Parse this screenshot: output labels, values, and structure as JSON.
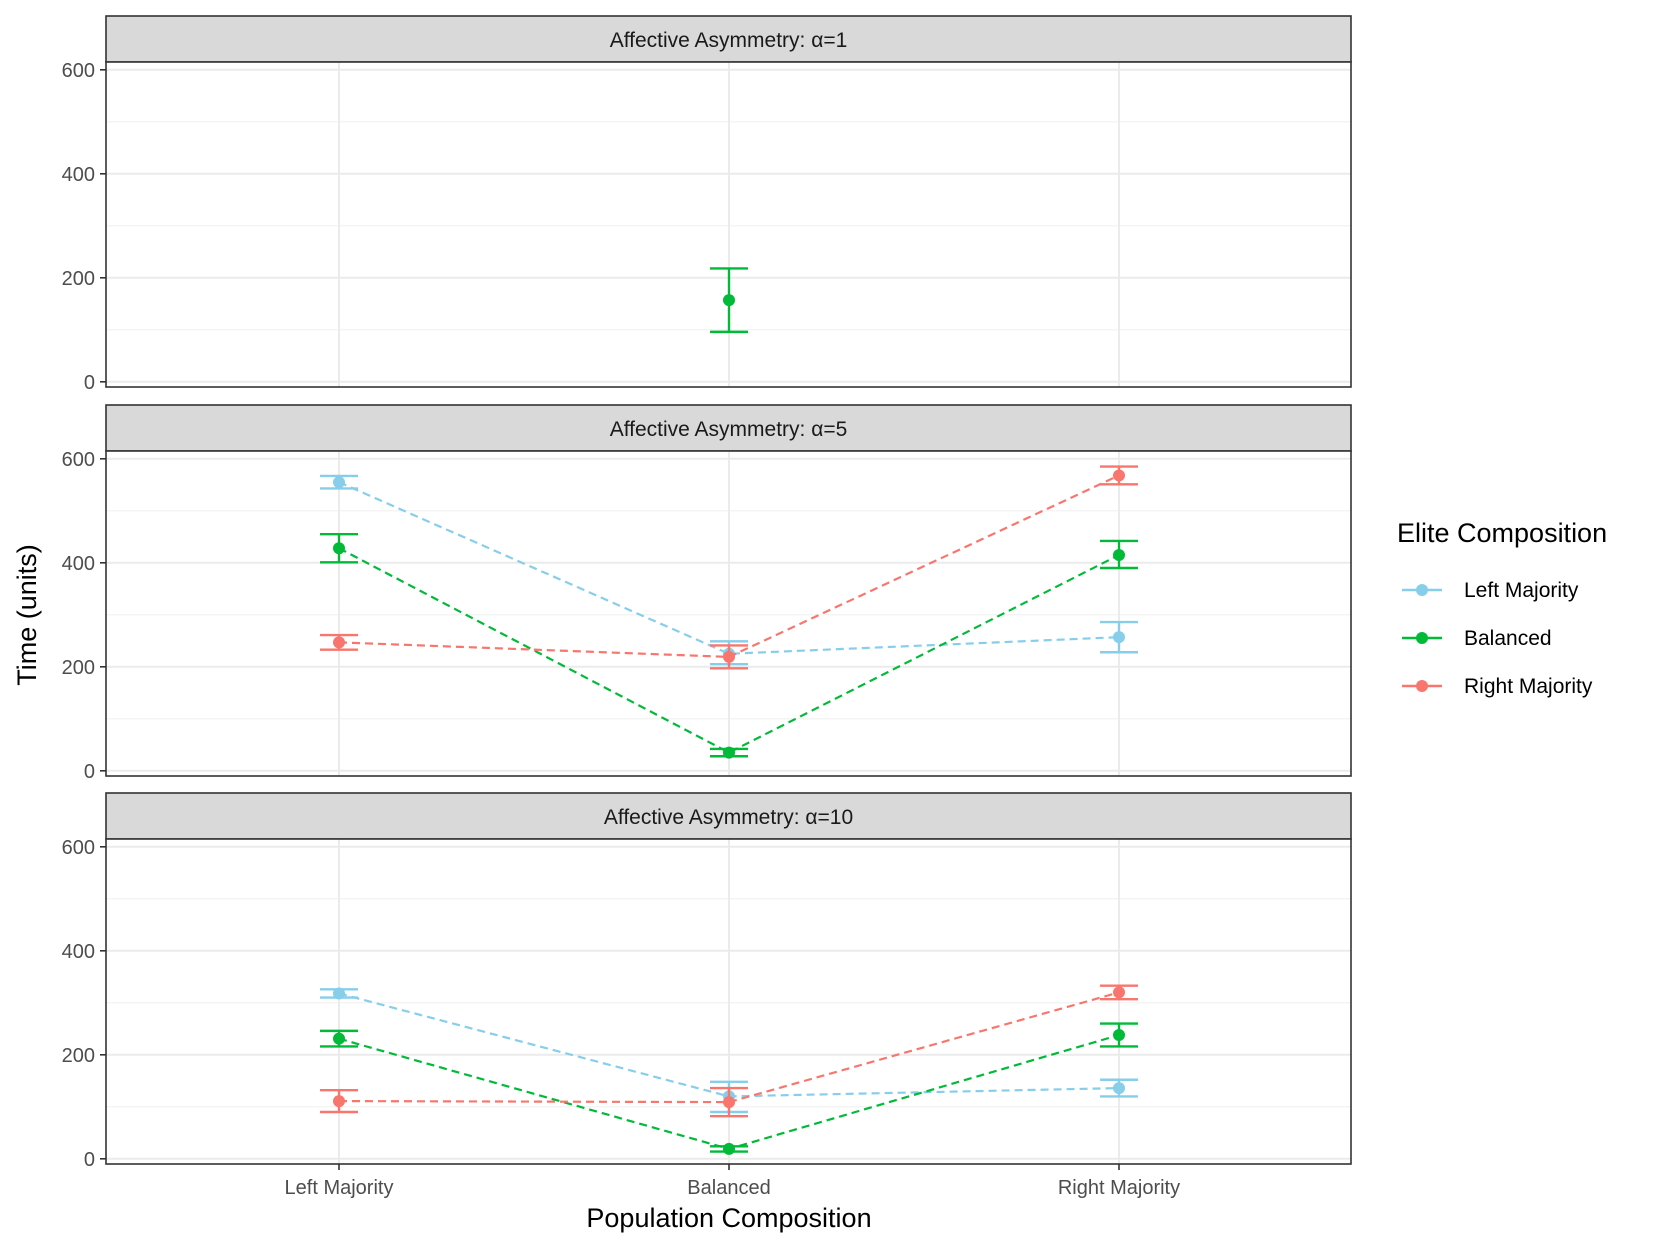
{
  "chart_data": {
    "type": "line",
    "x_title": "Population Composition",
    "y_title": "Time (units)",
    "categories": [
      "Left Majority",
      "Balanced",
      "Right Majority"
    ],
    "y_ticks": [
      0,
      200,
      400,
      600
    ],
    "ylim": [
      -10,
      615
    ],
    "legend": {
      "title": "Elite Composition",
      "position": "right",
      "entries": [
        {
          "name": "Left Majority",
          "color": "#87CEEB"
        },
        {
          "name": "Balanced",
          "color": "#00BA38"
        },
        {
          "name": "Right Majority",
          "color": "#F8766D"
        }
      ]
    },
    "panels": [
      {
        "title": "Affective Asymmetry: α=1",
        "series": [
          {
            "name": "Left Majority",
            "color": "#87CEEB",
            "values": [
              null,
              null,
              null
            ],
            "lower": [
              null,
              null,
              null
            ],
            "upper": [
              null,
              null,
              null
            ]
          },
          {
            "name": "Balanced",
            "color": "#00BA38",
            "values": [
              null,
              157,
              null
            ],
            "lower": [
              null,
              96,
              null
            ],
            "upper": [
              null,
              218,
              null
            ]
          },
          {
            "name": "Right Majority",
            "color": "#F8766D",
            "values": [
              null,
              null,
              null
            ],
            "lower": [
              null,
              null,
              null
            ],
            "upper": [
              null,
              null,
              null
            ]
          }
        ]
      },
      {
        "title": "Affective Asymmetry: α=5",
        "series": [
          {
            "name": "Left Majority",
            "color": "#87CEEB",
            "values": [
              555,
              225,
              257
            ],
            "lower": [
              543,
              205,
              228
            ],
            "upper": [
              567,
              249,
              286
            ]
          },
          {
            "name": "Balanced",
            "color": "#00BA38",
            "values": [
              428,
              35,
              415
            ],
            "lower": [
              401,
              28,
              390
            ],
            "upper": [
              455,
              42,
              442
            ]
          },
          {
            "name": "Right Majority",
            "color": "#F8766D",
            "values": [
              247,
              219,
              568
            ],
            "lower": [
              233,
              197,
              551
            ],
            "upper": [
              261,
              241,
              585
            ]
          }
        ]
      },
      {
        "title": "Affective Asymmetry: α=10",
        "series": [
          {
            "name": "Left Majority",
            "color": "#87CEEB",
            "values": [
              318,
              120,
              136
            ],
            "lower": [
              310,
              90,
              120
            ],
            "upper": [
              326,
              148,
              152
            ]
          },
          {
            "name": "Balanced",
            "color": "#00BA38",
            "values": [
              231,
              19,
              238
            ],
            "lower": [
              216,
              14,
              216
            ],
            "upper": [
              246,
              24,
              260
            ]
          },
          {
            "name": "Right Majority",
            "color": "#F8766D",
            "values": [
              111,
              109,
              320
            ],
            "lower": [
              90,
              82,
              307
            ],
            "upper": [
              132,
              136,
              333
            ]
          }
        ]
      }
    ]
  }
}
